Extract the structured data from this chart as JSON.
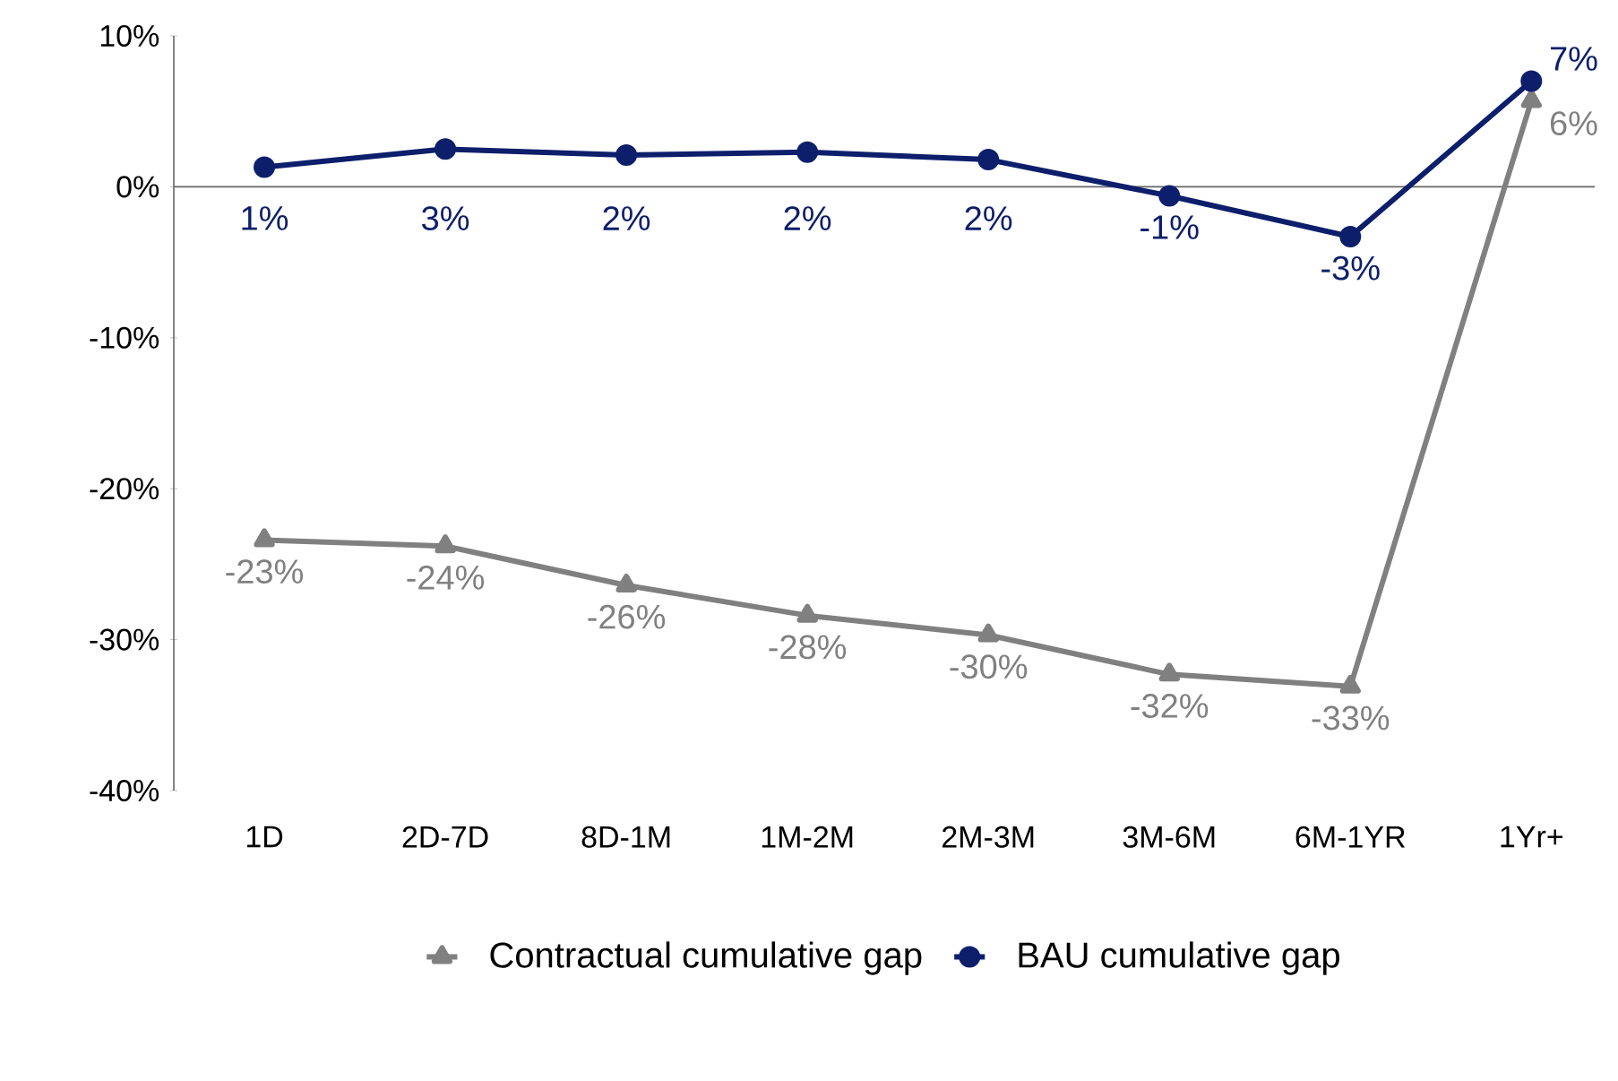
{
  "chart_data": {
    "type": "line",
    "categories": [
      "1D",
      "2D-7D",
      "8D-1M",
      "1M-2M",
      "2M-3M",
      "3M-6M",
      "6M-1YR",
      "1Yr+"
    ],
    "series": [
      {
        "name": "Contractual cumulative gap",
        "color": "#808080",
        "marker": "triangle",
        "values": [
          -23.4,
          -23.8,
          -26.4,
          -28.4,
          -29.7,
          -32.3,
          -33.1,
          5.7
        ],
        "value_labels": [
          "-23%",
          "-24%",
          "-26%",
          "-28%",
          "-30%",
          "-32%",
          "-33%",
          "6%"
        ]
      },
      {
        "name": "BAU cumulative gap",
        "color": "#0d1f6b",
        "marker": "circle",
        "values": [
          1.3,
          2.5,
          2.1,
          2.3,
          1.8,
          -0.6,
          -3.3,
          7.0
        ],
        "value_labels": [
          "1%",
          "3%",
          "2%",
          "2%",
          "2%",
          "-1%",
          "-3%",
          "7%"
        ]
      }
    ],
    "ylim": [
      -40,
      10
    ],
    "yticks": [
      {
        "value": 10,
        "label": "10%"
      },
      {
        "value": 0,
        "label": "0%"
      },
      {
        "value": -10,
        "label": "-10%"
      },
      {
        "value": -20,
        "label": "-20%"
      },
      {
        "value": -30,
        "label": "-30%"
      },
      {
        "value": -40,
        "label": "-40%"
      }
    ],
    "legend": "bottom",
    "line_style": "solid"
  }
}
